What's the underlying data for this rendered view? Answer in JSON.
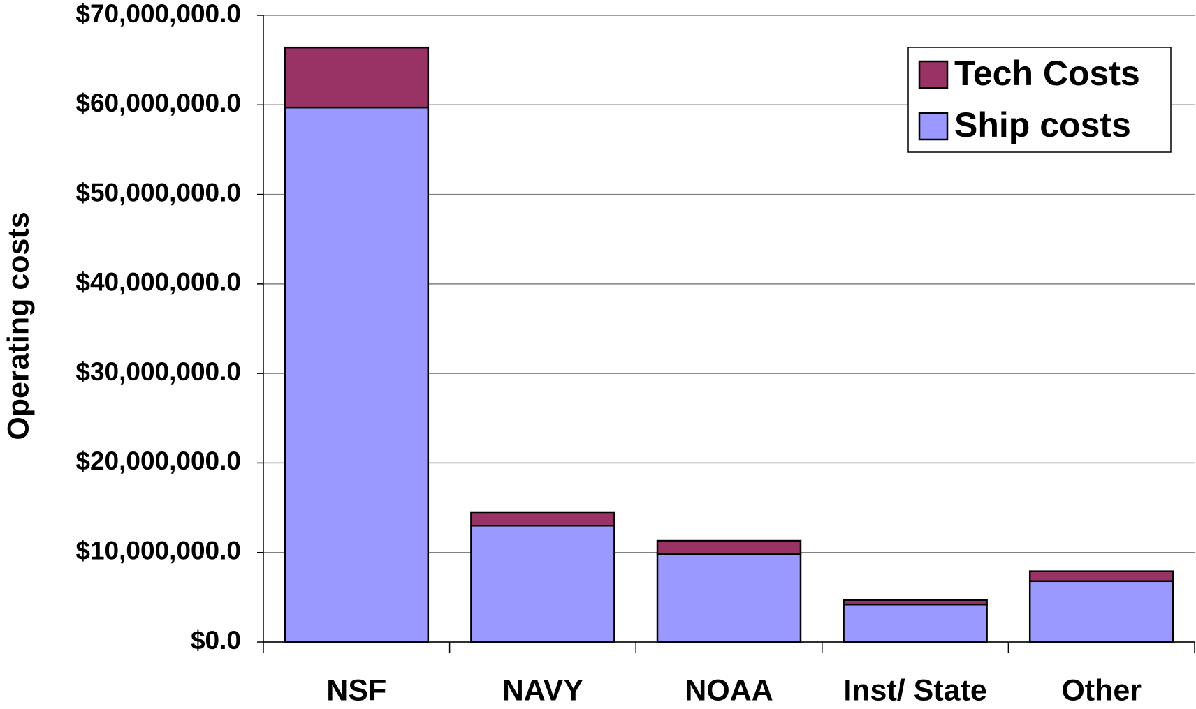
{
  "chart_data": {
    "type": "stacked_bar",
    "y_label": "Operating costs",
    "categories": [
      "NSF",
      "NAVY",
      "NOAA",
      "Inst/ State",
      "Other"
    ],
    "series": [
      {
        "name": "Ship costs",
        "color": "#9999ff",
        "values": [
          59700000,
          13000000,
          9800000,
          4200000,
          6800000
        ]
      },
      {
        "name": "Tech Costs",
        "color": "#993366",
        "values": [
          6700000,
          1500000,
          1500000,
          500000,
          1100000
        ]
      }
    ],
    "ylim": [
      0,
      70000000
    ],
    "yticks": [
      {
        "value": 0,
        "label": "$0.0"
      },
      {
        "value": 10000000,
        "label": "$10,000,000.0"
      },
      {
        "value": 20000000,
        "label": "$20,000,000.0"
      },
      {
        "value": 30000000,
        "label": "$30,000,000.0"
      },
      {
        "value": 40000000,
        "label": "$40,000,000.0"
      },
      {
        "value": 50000000,
        "label": "$50,000,000.0"
      },
      {
        "value": 60000000,
        "label": "$60,000,000.0"
      },
      {
        "value": 70000000,
        "label": "$70,000,000.0"
      }
    ],
    "grid": true,
    "legend": "upper right"
  }
}
